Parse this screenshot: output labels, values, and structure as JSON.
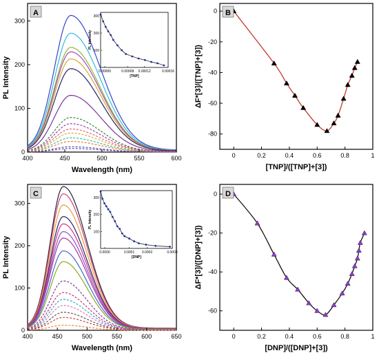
{
  "chart_data": [
    {
      "panel": "A",
      "type": "line",
      "xlabel": "Wavelength (nm)",
      "ylabel": "PL Intensity",
      "xlim": [
        400,
        600
      ],
      "ylim": [
        0,
        340
      ],
      "xticks": [
        400,
        450,
        500,
        550,
        600
      ],
      "yticks": [
        0,
        100,
        200,
        300
      ],
      "peak_x": 458,
      "series": [
        {
          "peak": 308,
          "color": "#3344cc",
          "style": "solid"
        },
        {
          "peak": 268,
          "color": "#33bbdd",
          "style": "solid"
        },
        {
          "peak": 236,
          "color": "#88bb33",
          "style": "solid"
        },
        {
          "peak": 226,
          "color": "#aa44bb",
          "style": "solid"
        },
        {
          "peak": 210,
          "color": "#ccaa33",
          "style": "solid"
        },
        {
          "peak": 188,
          "color": "#222266",
          "style": "solid"
        },
        {
          "peak": 128,
          "color": "#773399",
          "style": "solid"
        },
        {
          "peak": 78,
          "color": "#338833",
          "style": "dashed"
        },
        {
          "peak": 64,
          "color": "#aa33aa",
          "style": "dashed"
        },
        {
          "peak": 52,
          "color": "#dd6677",
          "style": "dashed"
        },
        {
          "peak": 43,
          "color": "#ddaa33",
          "style": "dashed"
        },
        {
          "peak": 32,
          "color": "#33bb99",
          "style": "dashed"
        },
        {
          "peak": 24,
          "color": "#ee7733",
          "style": "dashed"
        },
        {
          "peak": 12,
          "color": "#3355aa",
          "style": "dashed"
        },
        {
          "peak": 8,
          "color": "#7744aa",
          "style": "dashed"
        }
      ],
      "inset": {
        "type": "line",
        "xlabel": "[TNP]",
        "ylabel": "PL Intensity",
        "xlim": [
          0,
          0.00016
        ],
        "ylim": [
          0,
          320
        ],
        "xticks": [
          "0.00000",
          "0.00008",
          "0.00012",
          "0.00016"
        ],
        "yticks": [
          "100",
          "200",
          "300"
        ],
        "x": [
          0.0,
          6e-06,
          1.2e-05,
          1.8e-05,
          2.4e-05,
          3e-05,
          4e-05,
          5e-05,
          6e-05,
          7.5e-05,
          9e-05,
          0.000105,
          0.00012,
          0.000135,
          0.00015
        ],
        "y": [
          308,
          268,
          236,
          210,
          188,
          160,
          128,
          100,
          78,
          64,
          52,
          43,
          32,
          24,
          12
        ]
      }
    },
    {
      "panel": "B",
      "type": "scatter",
      "xlabel": "[TNP]/([TNP]+[3])",
      "ylabel": "ΔF*[3]/([TNP]+[3])",
      "xlim": [
        -0.1,
        1.0
      ],
      "ylim": [
        -90,
        5
      ],
      "xticks": [
        0.0,
        0.2,
        0.4,
        0.6,
        0.8,
        1.0
      ],
      "yticks": [
        0,
        -20,
        -40,
        -60,
        -80
      ],
      "x": [
        0.0,
        0.29,
        0.38,
        0.44,
        0.5,
        0.6,
        0.67,
        0.72,
        0.75,
        0.79,
        0.82,
        0.85,
        0.87,
        0.89
      ],
      "y": [
        0,
        -34,
        -47,
        -55,
        -63,
        -74,
        -78,
        -73,
        -68,
        -57,
        -48,
        -42,
        -37,
        -33
      ]
    },
    {
      "panel": "C",
      "type": "line",
      "xlabel": "Wavelength (nm)",
      "ylabel": "PL Intensity",
      "xlim": [
        400,
        650
      ],
      "ylim": [
        0,
        345
      ],
      "xticks": [
        400,
        450,
        500,
        550,
        600,
        650
      ],
      "yticks": [
        0,
        100,
        200,
        300
      ],
      "peak_x": 460,
      "series": [
        {
          "peak": 335,
          "color": "#222244",
          "style": "solid"
        },
        {
          "peak": 318,
          "color": "#cc4466",
          "style": "solid"
        },
        {
          "peak": 292,
          "color": "#ee9944",
          "style": "solid"
        },
        {
          "peak": 265,
          "color": "#222266",
          "style": "solid"
        },
        {
          "peak": 248,
          "color": "#cc3388",
          "style": "solid"
        },
        {
          "peak": 230,
          "color": "#8855bb",
          "style": "solid"
        },
        {
          "peak": 215,
          "color": "#aa33aa",
          "style": "solid"
        },
        {
          "peak": 185,
          "color": "#4466cc",
          "style": "solid"
        },
        {
          "peak": 160,
          "color": "#88aa22",
          "style": "solid"
        },
        {
          "peak": 115,
          "color": "#883399",
          "style": "dashed"
        },
        {
          "peak": 88,
          "color": "#cc3377",
          "style": "dashed"
        },
        {
          "peak": 72,
          "color": "#33aacc",
          "style": "dashed"
        },
        {
          "peak": 58,
          "color": "#dd77aa",
          "style": "dashed"
        },
        {
          "peak": 42,
          "color": "#555555",
          "style": "dashed"
        },
        {
          "peak": 30,
          "color": "#cc4444",
          "style": "dashed"
        },
        {
          "peak": 12,
          "color": "#ee8833",
          "style": "dashed"
        }
      ],
      "inset": {
        "type": "line",
        "xlabel": "[DNP]",
        "ylabel": "PL Intensity",
        "xlim": [
          0,
          0.0003
        ],
        "ylim": [
          0,
          340
        ],
        "xticks": [
          "0.0000",
          "0.0001",
          "0.0002",
          "0.0003"
        ],
        "yticks": [
          "100",
          "200",
          "300"
        ],
        "x": [
          0.0,
          8e-06,
          1.6e-05,
          2.4e-05,
          3.2e-05,
          4e-05,
          5e-05,
          6e-05,
          7e-05,
          8e-05,
          9e-05,
          0.0001,
          0.00012,
          0.00014,
          0.00016,
          0.00019,
          0.00023,
          0.00029
        ],
        "y": [
          335,
          292,
          265,
          248,
          230,
          215,
          185,
          160,
          130,
          115,
          88,
          72,
          58,
          42,
          30,
          22,
          15,
          10
        ]
      }
    },
    {
      "panel": "D",
      "type": "scatter",
      "xlabel": "[DNP]/([DNP]+[3])",
      "ylabel": "ΔF*[3]/([DNP]+[3])",
      "xlim": [
        -0.1,
        1.0
      ],
      "ylim": [
        -70,
        5
      ],
      "xticks": [
        0.0,
        0.2,
        0.4,
        0.6,
        0.8,
        1.0
      ],
      "yticks": [
        0,
        -20,
        -40,
        -60
      ],
      "x": [
        0.0,
        0.17,
        0.29,
        0.38,
        0.46,
        0.54,
        0.6,
        0.66,
        0.72,
        0.78,
        0.82,
        0.85,
        0.87,
        0.89,
        0.9,
        0.91,
        0.94
      ],
      "y": [
        0,
        -15,
        -31,
        -43,
        -49,
        -56,
        -60,
        -62,
        -57,
        -51,
        -46,
        -41,
        -37,
        -33,
        -29,
        -25,
        -20
      ]
    }
  ]
}
